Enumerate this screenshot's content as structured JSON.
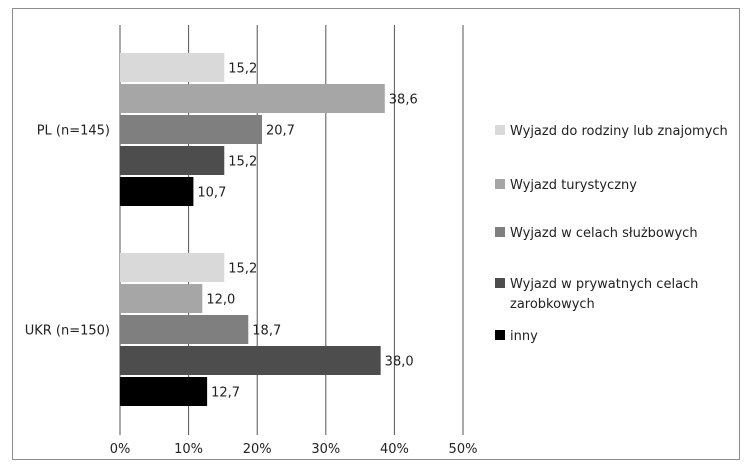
{
  "chart_data": {
    "type": "bar",
    "orientation": "horizontal",
    "categories": [
      "PL (n=145)",
      "UKR (n=150)"
    ],
    "series": [
      {
        "name": "Wyjazd do rodziny lub znajomych",
        "values": [
          15.2,
          15.2
        ],
        "labels": [
          "15,2",
          "15,2"
        ],
        "color": "#d9d9d9"
      },
      {
        "name": "Wyjazd turystyczny",
        "values": [
          38.6,
          12.0
        ],
        "labels": [
          "38,6",
          "12,0"
        ],
        "color": "#a6a6a6"
      },
      {
        "name": "Wyjazd w celach służbowych",
        "values": [
          20.7,
          18.7
        ],
        "labels": [
          "20,7",
          "18,7"
        ],
        "color": "#7f7f7f"
      },
      {
        "name": "Wyjazd w prywatnych celach zarobkowych",
        "values": [
          15.2,
          38.0
        ],
        "labels": [
          "15,2",
          "38,0"
        ],
        "color": "#4d4d4d"
      },
      {
        "name": "inny",
        "values": [
          10.7,
          12.7
        ],
        "labels": [
          "10,7",
          "12,7"
        ],
        "color": "#000000"
      }
    ],
    "xlim": [
      0,
      50
    ],
    "xticks": [
      0,
      10,
      20,
      30,
      40,
      50
    ],
    "xtick_labels": [
      "0%",
      "10%",
      "20%",
      "30%",
      "40%",
      "50%"
    ],
    "grid": "vertical",
    "legend_position": "right"
  }
}
